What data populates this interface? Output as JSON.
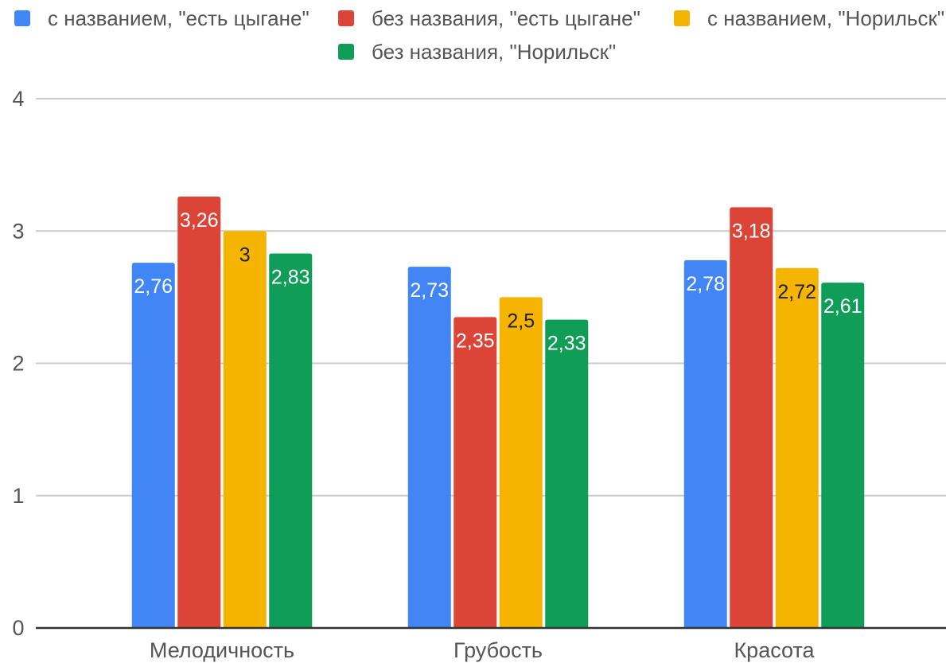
{
  "chart_data": {
    "type": "bar",
    "categories": [
      "Мелодичность",
      "Грубость",
      "Красота"
    ],
    "series": [
      {
        "name": "с названием, \"есть цыгане\"",
        "color": "#4285F4",
        "values": [
          2.76,
          2.73,
          2.78
        ],
        "labels": [
          "2,76",
          "2,73",
          "2,78"
        ],
        "label_color": "#ffffff"
      },
      {
        "name": "без названия, \"есть цыгане\"",
        "color": "#DB4437",
        "values": [
          3.26,
          2.35,
          3.18
        ],
        "labels": [
          "3,26",
          "2,35",
          "3,18"
        ],
        "label_color": "#ffffff"
      },
      {
        "name": "с названием, \"Норильск\"",
        "color": "#F4B400",
        "values": [
          3,
          2.5,
          2.72
        ],
        "labels": [
          "3",
          "2,5",
          "2,72"
        ],
        "label_color": "#222222"
      },
      {
        "name": "без названия, \"Норильск\"",
        "color": "#0F9D58",
        "values": [
          2.83,
          2.33,
          2.61
        ],
        "labels": [
          "2,83",
          "2,33",
          "2,61"
        ],
        "label_color": "#ffffff"
      }
    ],
    "ylim": [
      0,
      4
    ],
    "yticks": [
      "0",
      "1",
      "2",
      "3",
      "4"
    ],
    "grid": true,
    "legend_position": "top"
  }
}
